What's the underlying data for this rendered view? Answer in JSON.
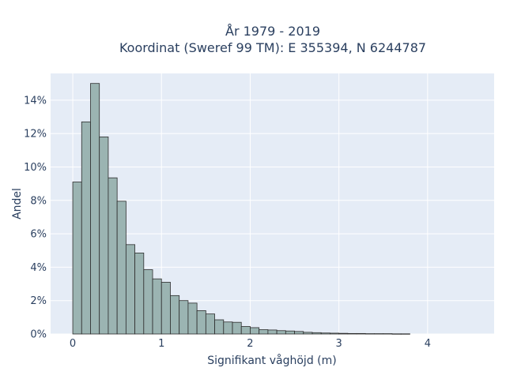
{
  "chart_data": {
    "type": "bar",
    "title_lines": [
      "År 1979 - 2019",
      "Koordinat (Sweref 99 TM): E 355394, N 6244787"
    ],
    "xlabel": "Signifikant våghöjd (m)",
    "ylabel": "Andel",
    "xlim": [
      -0.25,
      4.75
    ],
    "ylim": [
      0,
      15.6
    ],
    "x_ticks": [
      0,
      1,
      2,
      3,
      4
    ],
    "x_tick_labels": [
      "0",
      "1",
      "2",
      "3",
      "4"
    ],
    "y_ticks": [
      0,
      2,
      4,
      6,
      8,
      10,
      12,
      14
    ],
    "y_tick_labels": [
      "0%",
      "2%",
      "4%",
      "6%",
      "8%",
      "10%",
      "12%",
      "14%"
    ],
    "bin_start": 0.0,
    "bin_width": 0.1,
    "values": [
      9.1,
      12.7,
      15.0,
      11.8,
      9.35,
      7.95,
      5.35,
      4.85,
      3.85,
      3.3,
      3.1,
      2.3,
      2.0,
      1.85,
      1.4,
      1.2,
      0.85,
      0.72,
      0.7,
      0.45,
      0.38,
      0.26,
      0.24,
      0.2,
      0.18,
      0.15,
      0.1,
      0.08,
      0.06,
      0.05,
      0.04,
      0.03,
      0.03,
      0.02,
      0.02,
      0.02,
      0.01,
      0.01
    ],
    "grid": true,
    "colors": {
      "bar": "#9bb4b2",
      "bar_edge": "#2d2d2d",
      "plot_bg": "#e5ecf6",
      "text": "#2a3f5f"
    }
  }
}
